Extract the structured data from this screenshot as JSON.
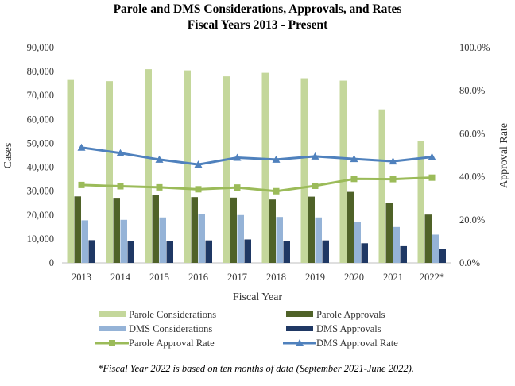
{
  "chart_data": {
    "type": "bar",
    "title": "Parole and DMS Considerations, Approvals, and Rates",
    "subtitle": "Fiscal Years 2013 - Present",
    "xlabel": "Fiscal Year",
    "ylabel": "Cases",
    "y2label": "Approval Rate",
    "ylim": [
      0,
      90000
    ],
    "y2lim": [
      0,
      100
    ],
    "categories": [
      "2013",
      "2014",
      "2015",
      "2016",
      "2017",
      "2018",
      "2019",
      "2020",
      "2021",
      "2022*"
    ],
    "yticks": [
      "0",
      "10,000",
      "20,000",
      "30,000",
      "40,000",
      "50,000",
      "60,000",
      "70,000",
      "80,000",
      "90,000"
    ],
    "y2ticks": [
      "0.0%",
      "20.0%",
      "40.0%",
      "60.0%",
      "80.0%",
      "100.0%"
    ],
    "series": [
      {
        "name": "Parole Considerations",
        "kind": "bar",
        "axis": "left",
        "color": "#c4d79b",
        "values": [
          76500,
          76000,
          81000,
          80500,
          78000,
          79500,
          77200,
          76200,
          64200,
          51000
        ]
      },
      {
        "name": "Parole Approvals",
        "kind": "bar",
        "axis": "left",
        "color": "#4f6228",
        "values": [
          27800,
          27200,
          28500,
          27500,
          27300,
          26500,
          27700,
          29700,
          25000,
          20200
        ]
      },
      {
        "name": "DMS Considerations",
        "kind": "bar",
        "axis": "left",
        "color": "#95b3d7",
        "values": [
          17800,
          18000,
          19000,
          20500,
          20000,
          19200,
          19000,
          17000,
          15000,
          11800
        ]
      },
      {
        "name": "DMS Approvals",
        "kind": "bar",
        "axis": "left",
        "color": "#1f3864",
        "values": [
          9500,
          9200,
          9200,
          9400,
          9800,
          9100,
          9400,
          8200,
          7000,
          5800
        ]
      },
      {
        "name": "Parole Approval Rate",
        "kind": "line",
        "axis": "right",
        "color": "#9bbb59",
        "marker": "square",
        "values": [
          36.2,
          35.6,
          35.1,
          34.2,
          35.0,
          33.3,
          35.8,
          39.0,
          38.9,
          39.6
        ]
      },
      {
        "name": "DMS Approval Rate",
        "kind": "line",
        "axis": "right",
        "color": "#4f81bd",
        "marker": "triangle",
        "values": [
          53.6,
          51.0,
          48.0,
          45.7,
          48.9,
          48.0,
          49.5,
          48.3,
          47.2,
          49.2
        ]
      }
    ],
    "grid": false,
    "legend": "bottom"
  },
  "footnote": "*Fiscal Year 2022 is based on ten months of data (September 2021-June 2022)."
}
